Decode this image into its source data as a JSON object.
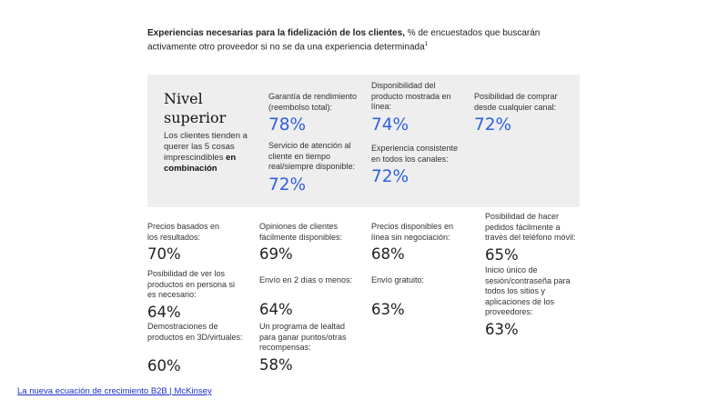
{
  "title": {
    "bold": "Experiencias necesarias para la fidelización de los clientes,",
    "rest": "% de encuestados que buscarán activamente otro proveedor si no se da una experiencia determinada",
    "footnote": "1"
  },
  "panel": {
    "heading": "Nivel superior",
    "desc_plain": "Los clientes tienden a querer las 5 cosas imprescindibles",
    "desc_bold": "en combinación"
  },
  "chart_data": {
    "type": "table",
    "unit": "%",
    "top_tier": [
      {
        "label": "Garantía de rendimiento (reembolso total):",
        "value": 78,
        "display": "78%"
      },
      {
        "label": "Servicio de atención al cliente en tiempo real/siempre disponible:",
        "value": 72,
        "display": "72%"
      },
      {
        "label": "Disponibilidad del producto mostrada en línea:",
        "value": 74,
        "display": "74%"
      },
      {
        "label": "Experiencia consistente en todos los canales:",
        "value": 72,
        "display": "72%"
      },
      {
        "label": "Posibilidad de comprar desde cualquier canal:",
        "value": 72,
        "display": "72%"
      }
    ],
    "others": [
      {
        "label": "Precios basados en los resultados:",
        "value": 70,
        "display": "70%"
      },
      {
        "label": "Posibilidad de ver los productos en persona si es necesario:",
        "value": 64,
        "display": "64%"
      },
      {
        "label": "Demostraciones de productos en 3D/virtuales:",
        "value": 60,
        "display": "60%"
      },
      {
        "label": "Opiniones de clientes fácilmente disponibles:",
        "value": 69,
        "display": "69%"
      },
      {
        "label": "Envío en 2 días o menos:",
        "value": 64,
        "display": "64%"
      },
      {
        "label": "Un programa de lealtad para ganar puntos/otras recompensas:",
        "value": 58,
        "display": "58%"
      },
      {
        "label": "Precios disponibles en línea sin negociación:",
        "value": 68,
        "display": "68%"
      },
      {
        "label": "Envío gratuito:",
        "value": 63,
        "display": "63%"
      },
      {
        "label": "Posibilidad de hacer pedidos fácilmente a través del teléfono móvil:",
        "value": 65,
        "display": "65%"
      },
      {
        "label": "Inicio único de sesión/contraseña para todos los sitios y aplicaciones de los proveedores:",
        "value": 63,
        "display": "63%"
      }
    ]
  },
  "source_link": "La nueva ecuación de crecimiento B2B | McKinsey",
  "colors": {
    "accent_blue": "#2e5fe3",
    "panel_bg": "#eeeeef",
    "link": "#1a2fc7"
  }
}
